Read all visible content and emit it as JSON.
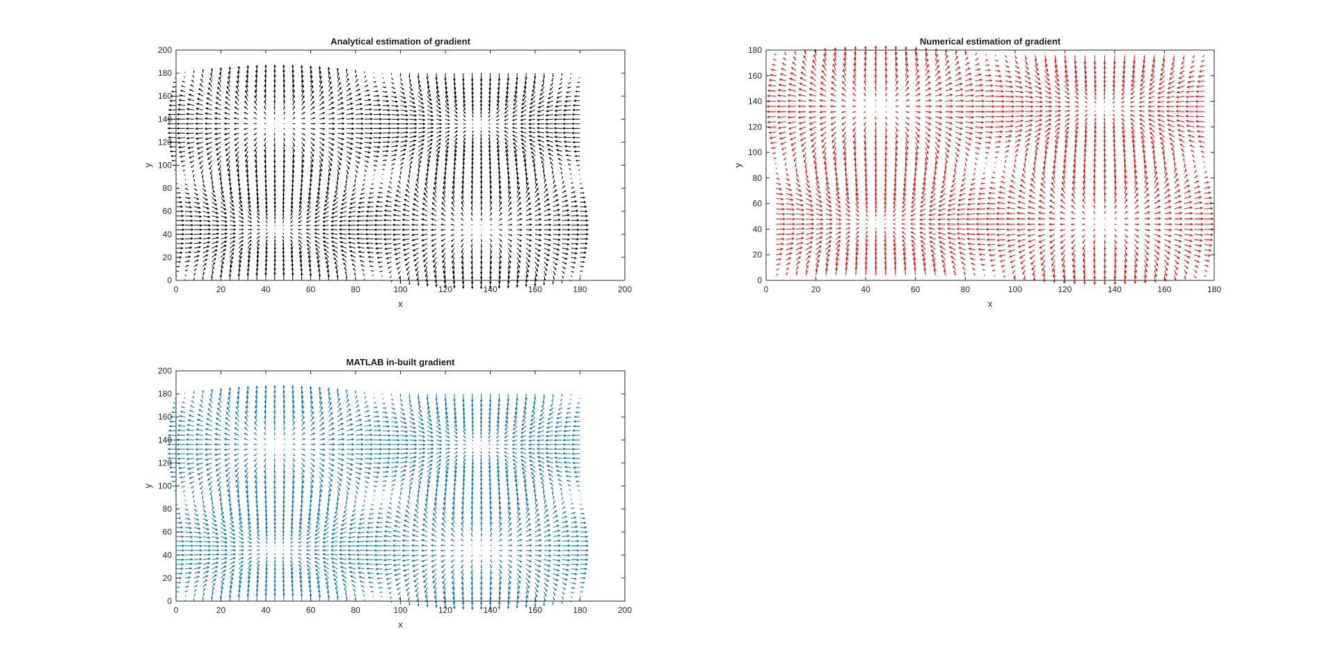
{
  "chart_data": [
    {
      "type": "quiver",
      "title": "Analytical estimation of gradient",
      "xlabel": "x",
      "ylabel": "y",
      "xlim": [
        0,
        200
      ],
      "ylim": [
        0,
        200
      ],
      "xticks": [
        0,
        20,
        40,
        60,
        80,
        100,
        120,
        140,
        160,
        180,
        200
      ],
      "yticks": [
        0,
        20,
        40,
        60,
        80,
        100,
        120,
        140,
        160,
        180,
        200
      ],
      "color": "#000000",
      "grid": false,
      "field": {
        "x_range": [
          0,
          180
        ],
        "y_range": [
          0,
          180
        ],
        "step": 4,
        "period": 180,
        "function": "u = cos(2*pi*x/180)*sin(2*pi*y/180), v = sin(2*pi*x/180)*cos(2*pi*y/180)"
      }
    },
    {
      "type": "quiver",
      "title": "Numerical estimation of gradient",
      "xlabel": "x",
      "ylabel": "y",
      "xlim": [
        0,
        180
      ],
      "ylim": [
        0,
        180
      ],
      "xticks": [
        0,
        20,
        40,
        60,
        80,
        100,
        120,
        140,
        160,
        180
      ],
      "yticks": [
        0,
        20,
        40,
        60,
        80,
        100,
        120,
        140,
        160,
        180
      ],
      "color": "#ff0000",
      "grid": false,
      "field": {
        "x_range": [
          4,
          176
        ],
        "y_range": [
          4,
          176
        ],
        "step": 4,
        "period": 180,
        "function": "u = cos(2*pi*x/180)*sin(2*pi*y/180), v = sin(2*pi*x/180)*cos(2*pi*y/180)"
      }
    },
    {
      "type": "quiver",
      "title": "MATLAB in-built gradient",
      "xlabel": "x",
      "ylabel": "y",
      "xlim": [
        0,
        200
      ],
      "ylim": [
        0,
        200
      ],
      "xticks": [
        0,
        20,
        40,
        60,
        80,
        100,
        120,
        140,
        160,
        180,
        200
      ],
      "yticks": [
        0,
        20,
        40,
        60,
        80,
        100,
        120,
        140,
        160,
        180,
        200
      ],
      "color": "#0072bd",
      "grid": false,
      "field": {
        "x_range": [
          0,
          180
        ],
        "y_range": [
          0,
          180
        ],
        "step": 4,
        "period": 180,
        "function": "u = cos(2*pi*x/180)*sin(2*pi*y/180), v = sin(2*pi*x/180)*cos(2*pi*y/180)"
      }
    }
  ]
}
